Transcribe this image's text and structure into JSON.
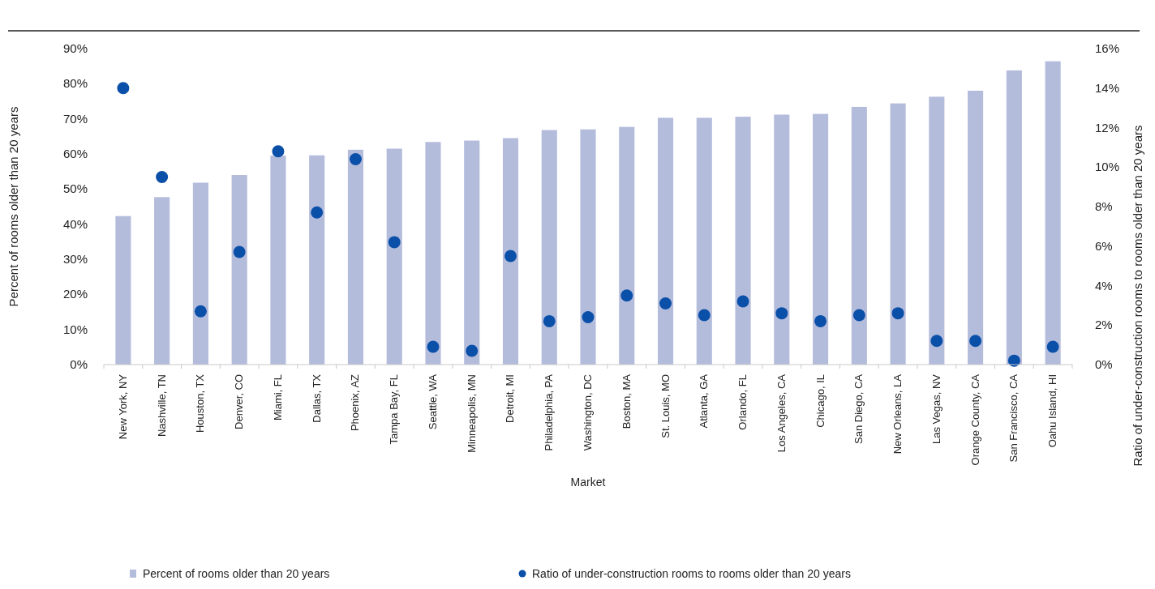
{
  "chart_data": {
    "type": "bar",
    "xlabel": "Market",
    "ylabel": "Percent of rooms older than 20 years",
    "y2label": "Ratio of under-construction rooms to rooms older than 20 years",
    "categories": [
      "New York, NY",
      "Nashville, TN",
      "Houston, TX",
      "Denver, CO",
      "Miami, FL",
      "Dallas, TX",
      "Phoenix, AZ",
      "Tampa Bay, FL",
      "Seattle, WA",
      "Minneapolis, MN",
      "Detroit, MI",
      "Philadelphia, PA",
      "Washington, DC",
      "Boston, MA",
      "St. Louis, MO",
      "Atlanta, GA",
      "Orlando, FL",
      "Los Angeles, CA",
      "Chicago, IL",
      "San Diego, CA",
      "New Orleans, LA",
      "Las Vegas, NV",
      "Orange County, CA",
      "San Francisco, CA",
      "Oahu Island, HI"
    ],
    "series": [
      {
        "name": "Percent of rooms older than 20 years",
        "color": "#b4bcdc",
        "values": [
          42.3,
          47.7,
          51.8,
          54,
          59.5,
          59.6,
          61.2,
          61.5,
          63.4,
          63.8,
          64.5,
          66.8,
          67,
          67.7,
          70.3,
          70.3,
          70.6,
          71.2,
          71.4,
          73.4,
          74.4,
          76.3,
          78,
          83.8,
          86.4
        ]
      },
      {
        "name": "Ratio of under-construction rooms to rooms older than 20 years",
        "type": "scatter",
        "axis": "y2",
        "marker": "circle",
        "color": "#0a4fa8",
        "values": [
          14,
          9.5,
          2.7,
          5.7,
          10.8,
          7.7,
          10.4,
          6.2,
          0.9,
          0.7,
          5.5,
          2.2,
          2.4,
          3.5,
          3.1,
          2.5,
          3.2,
          2.6,
          2.2,
          2.5,
          2.6,
          1.2,
          1.2,
          0.2,
          0.9
        ]
      }
    ],
    "ylim": [
      0,
      90
    ],
    "yticks": [
      {
        "value": 0,
        "label": "0%"
      },
      {
        "value": 10,
        "label": "10%"
      },
      {
        "value": 20,
        "label": "20%"
      },
      {
        "value": 30,
        "label": "30%"
      },
      {
        "value": 40,
        "label": "40%"
      },
      {
        "value": 50,
        "label": "50%"
      },
      {
        "value": 60,
        "label": "60%"
      },
      {
        "value": 70,
        "label": "70%"
      },
      {
        "value": 80,
        "label": "80%"
      },
      {
        "value": 90,
        "label": "90%"
      }
    ],
    "y2lim": [
      0,
      16
    ],
    "y2ticks": [
      {
        "value": 0,
        "label": "0%"
      },
      {
        "value": 2,
        "label": "2%"
      },
      {
        "value": 4,
        "label": "4%"
      },
      {
        "value": 6,
        "label": "6%"
      },
      {
        "value": 8,
        "label": "8%"
      },
      {
        "value": 10,
        "label": "10%"
      },
      {
        "value": 12,
        "label": "12%"
      },
      {
        "value": 14,
        "label": "14%"
      },
      {
        "value": 16,
        "label": "16%"
      }
    ],
    "legend": "bottom",
    "grid": false
  }
}
